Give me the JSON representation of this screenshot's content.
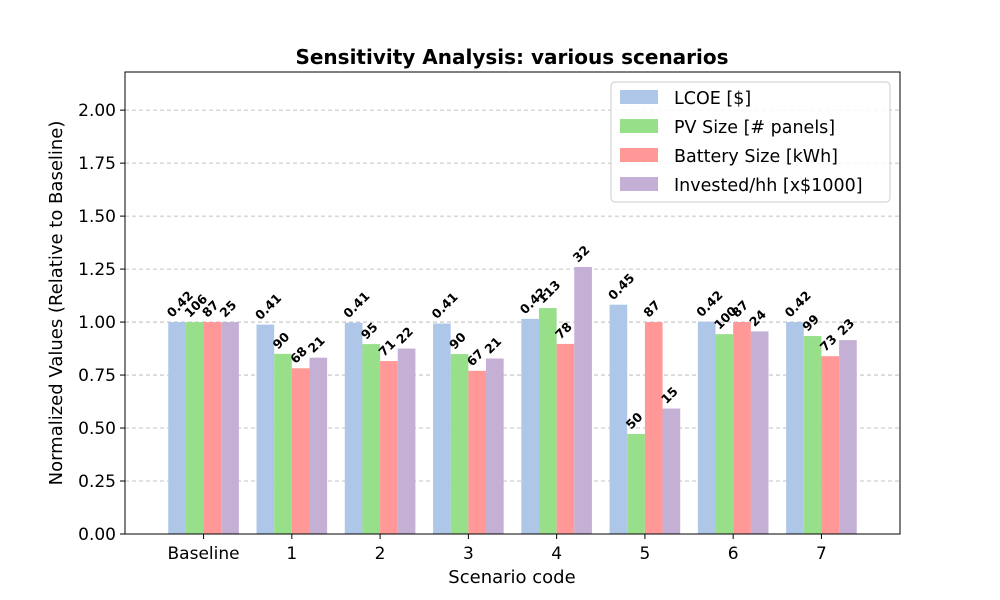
{
  "chart_data": {
    "type": "bar",
    "title": "Sensitivity Analysis: various scenarios",
    "xlabel": "Scenario code",
    "ylabel": "Normalized Values (Relative to Baseline)",
    "ylim": [
      0,
      2.18
    ],
    "yticks": [
      "0.00",
      "0.25",
      "0.50",
      "0.75",
      "1.00",
      "1.25",
      "1.50",
      "1.75",
      "2.00"
    ],
    "grid": "y-dashed",
    "legend_position": "top-right",
    "categories": [
      "Baseline",
      "1",
      "2",
      "3",
      "4",
      "5",
      "6",
      "7"
    ],
    "series": [
      {
        "name": "LCOE [$]",
        "color": "#aec7e8",
        "values": [
          1.0,
          0.988,
          0.997,
          0.993,
          1.015,
          1.082,
          1.002,
          1.0
        ],
        "labels": [
          "0.42",
          "0.41",
          "0.41",
          "0.41",
          "0.42",
          "0.45",
          "0.42",
          "0.42"
        ]
      },
      {
        "name": "PV Size [# panels]",
        "color": "#98df8a",
        "values": [
          1.0,
          0.85,
          0.896,
          0.849,
          1.066,
          0.472,
          0.943,
          0.934
        ],
        "labels": [
          "106",
          "90",
          "95",
          "90",
          "113",
          "50",
          "100",
          "99"
        ]
      },
      {
        "name": "Battery Size [kWh]",
        "color": "#ff9896",
        "values": [
          1.0,
          0.782,
          0.816,
          0.77,
          0.897,
          1.0,
          1.0,
          0.839
        ],
        "labels": [
          "87",
          "68",
          "71",
          "67",
          "78",
          "87",
          "87",
          "73"
        ]
      },
      {
        "name": "Invested/hh [x$1000]",
        "color": "#c5b0d5",
        "values": [
          1.0,
          0.832,
          0.875,
          0.828,
          1.26,
          0.592,
          0.956,
          0.915
        ],
        "labels": [
          "25",
          "21",
          "22",
          "21",
          "32",
          "15",
          "24",
          "23"
        ]
      }
    ]
  }
}
